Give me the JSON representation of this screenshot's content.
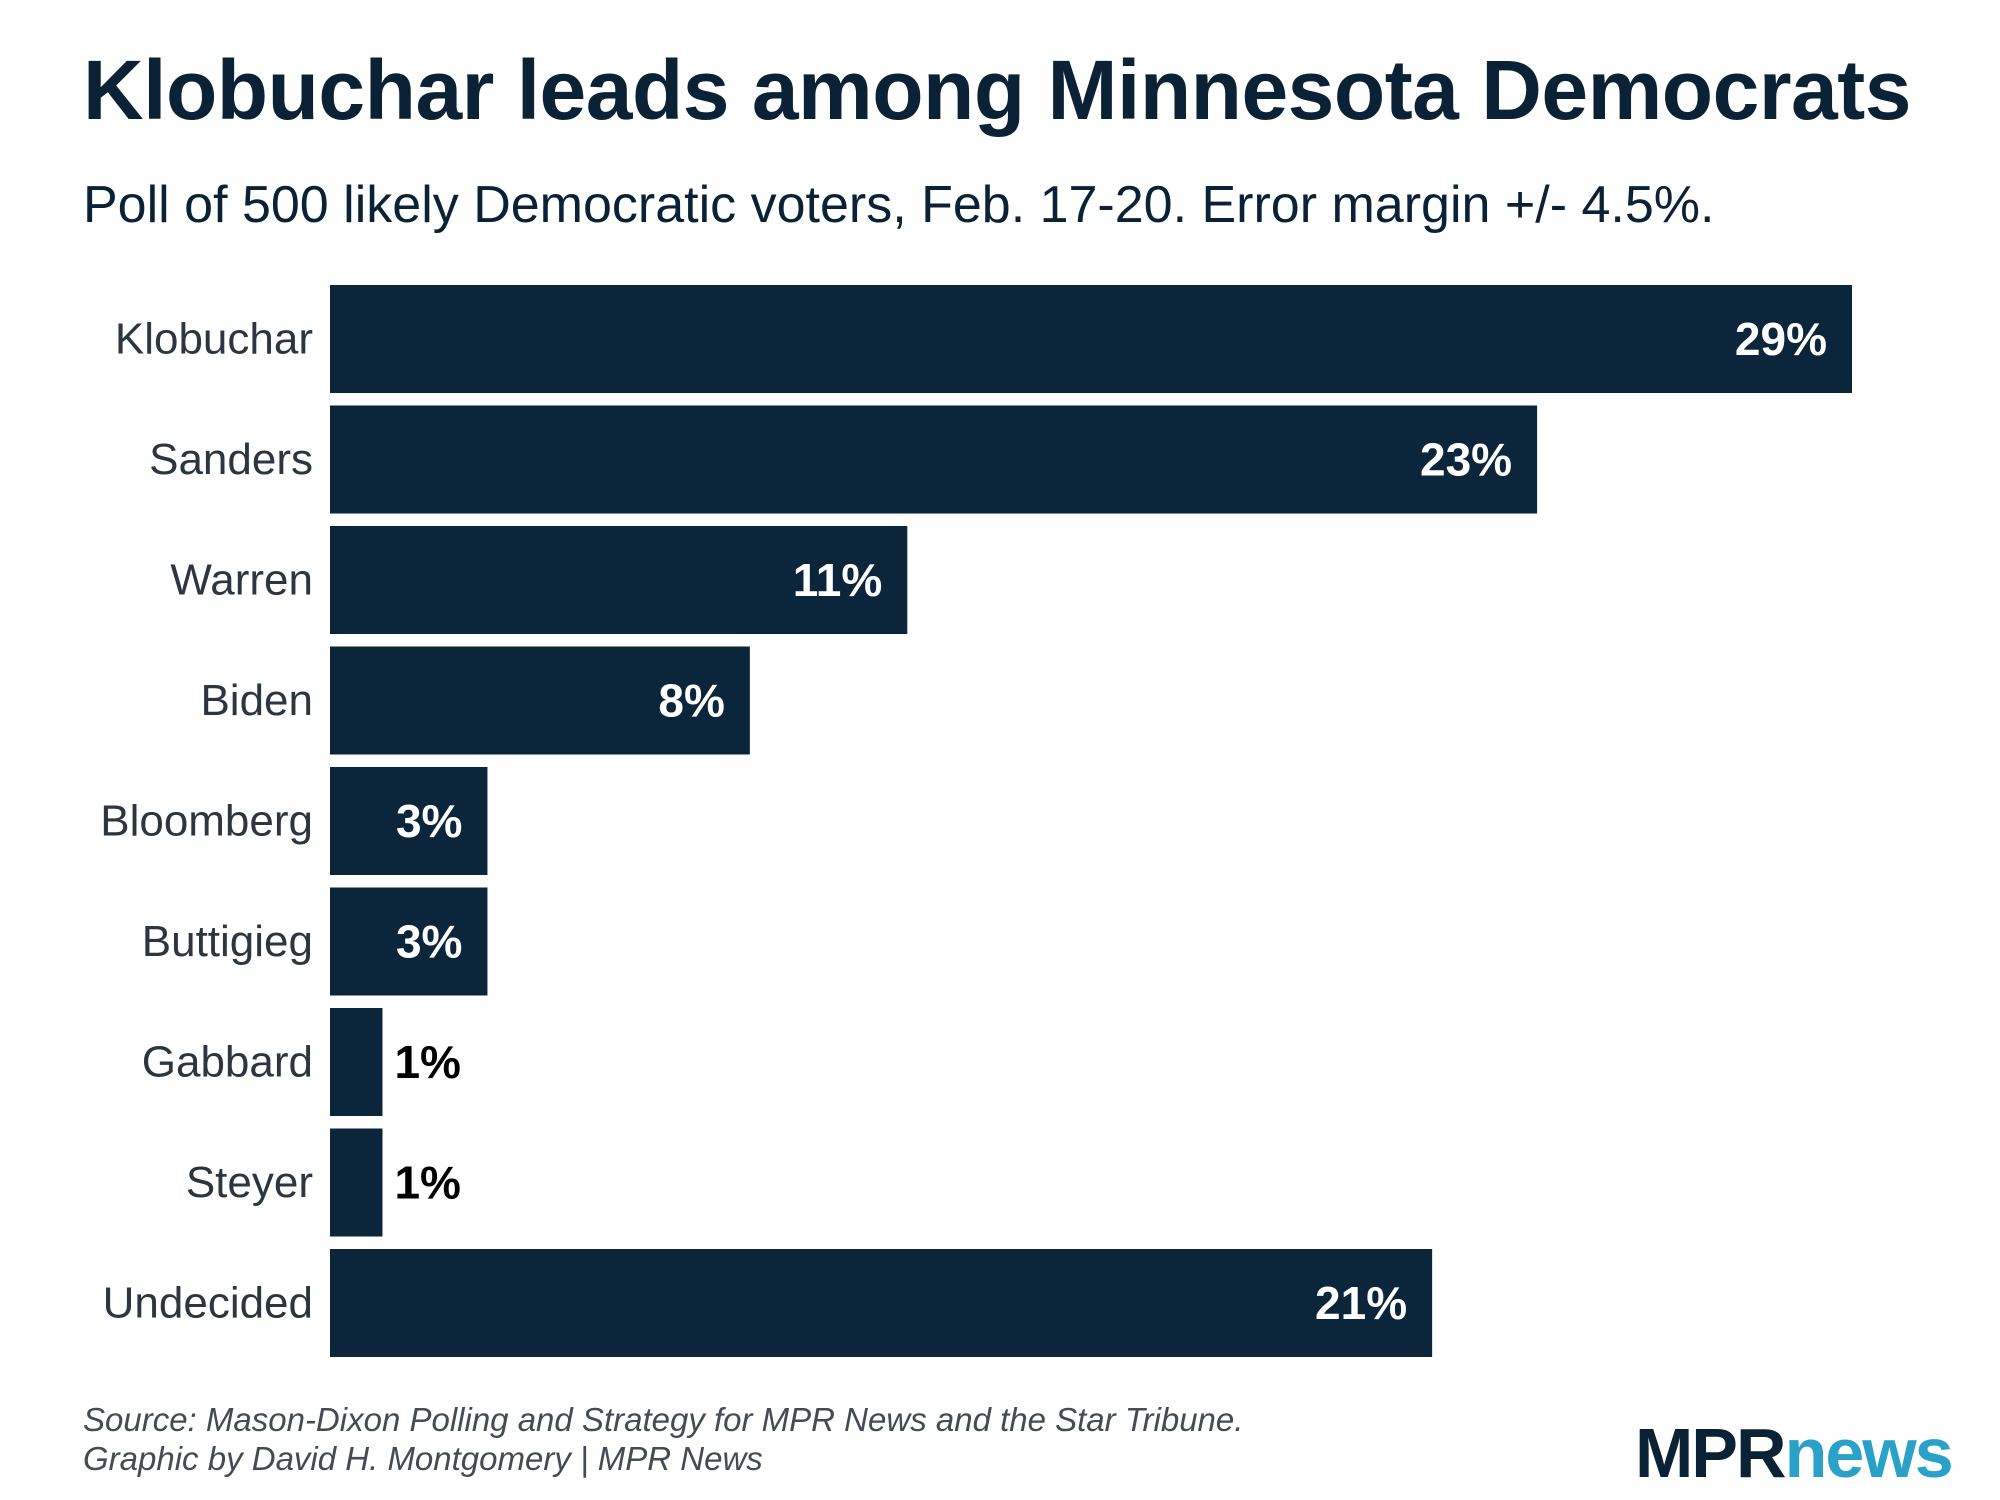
{
  "header": {
    "title": "Klobuchar leads among Minnesota Democrats",
    "subtitle": "Poll of 500 likely Democratic voters, Feb. 17-20. Error margin +/- 4.5%."
  },
  "footer": {
    "source_line1": "Source: Mason-Dixon Polling and Strategy for MPR News and the Star Tribune.",
    "source_line2": "Graphic by David H. Montgomery | MPR News",
    "logo_mpr": "MPR",
    "logo_news": "news"
  },
  "colors": {
    "bar": "#0b253b",
    "label_inside": "#ffffff",
    "label_outside": "#000000",
    "category_text": "#2b3640",
    "logo_mpr": "#0b2135",
    "logo_news": "#2aa1c8"
  },
  "chart_data": {
    "type": "bar",
    "orientation": "horizontal",
    "title": "Klobuchar leads among Minnesota Democrats",
    "subtitle": "Poll of 500 likely Democratic voters, Feb. 17-20. Error margin +/- 4.5%.",
    "categories": [
      "Klobuchar",
      "Sanders",
      "Warren",
      "Biden",
      "Bloomberg",
      "Buttigieg",
      "Gabbard",
      "Steyer",
      "Undecided"
    ],
    "values": [
      29,
      23,
      11,
      8,
      3,
      3,
      1,
      1,
      21
    ],
    "data_labels": [
      "29%",
      "23%",
      "11%",
      "8%",
      "3%",
      "3%",
      "1%",
      "1%",
      "21%"
    ],
    "xlim": [
      0,
      29
    ],
    "grid": false,
    "legend": "none"
  }
}
